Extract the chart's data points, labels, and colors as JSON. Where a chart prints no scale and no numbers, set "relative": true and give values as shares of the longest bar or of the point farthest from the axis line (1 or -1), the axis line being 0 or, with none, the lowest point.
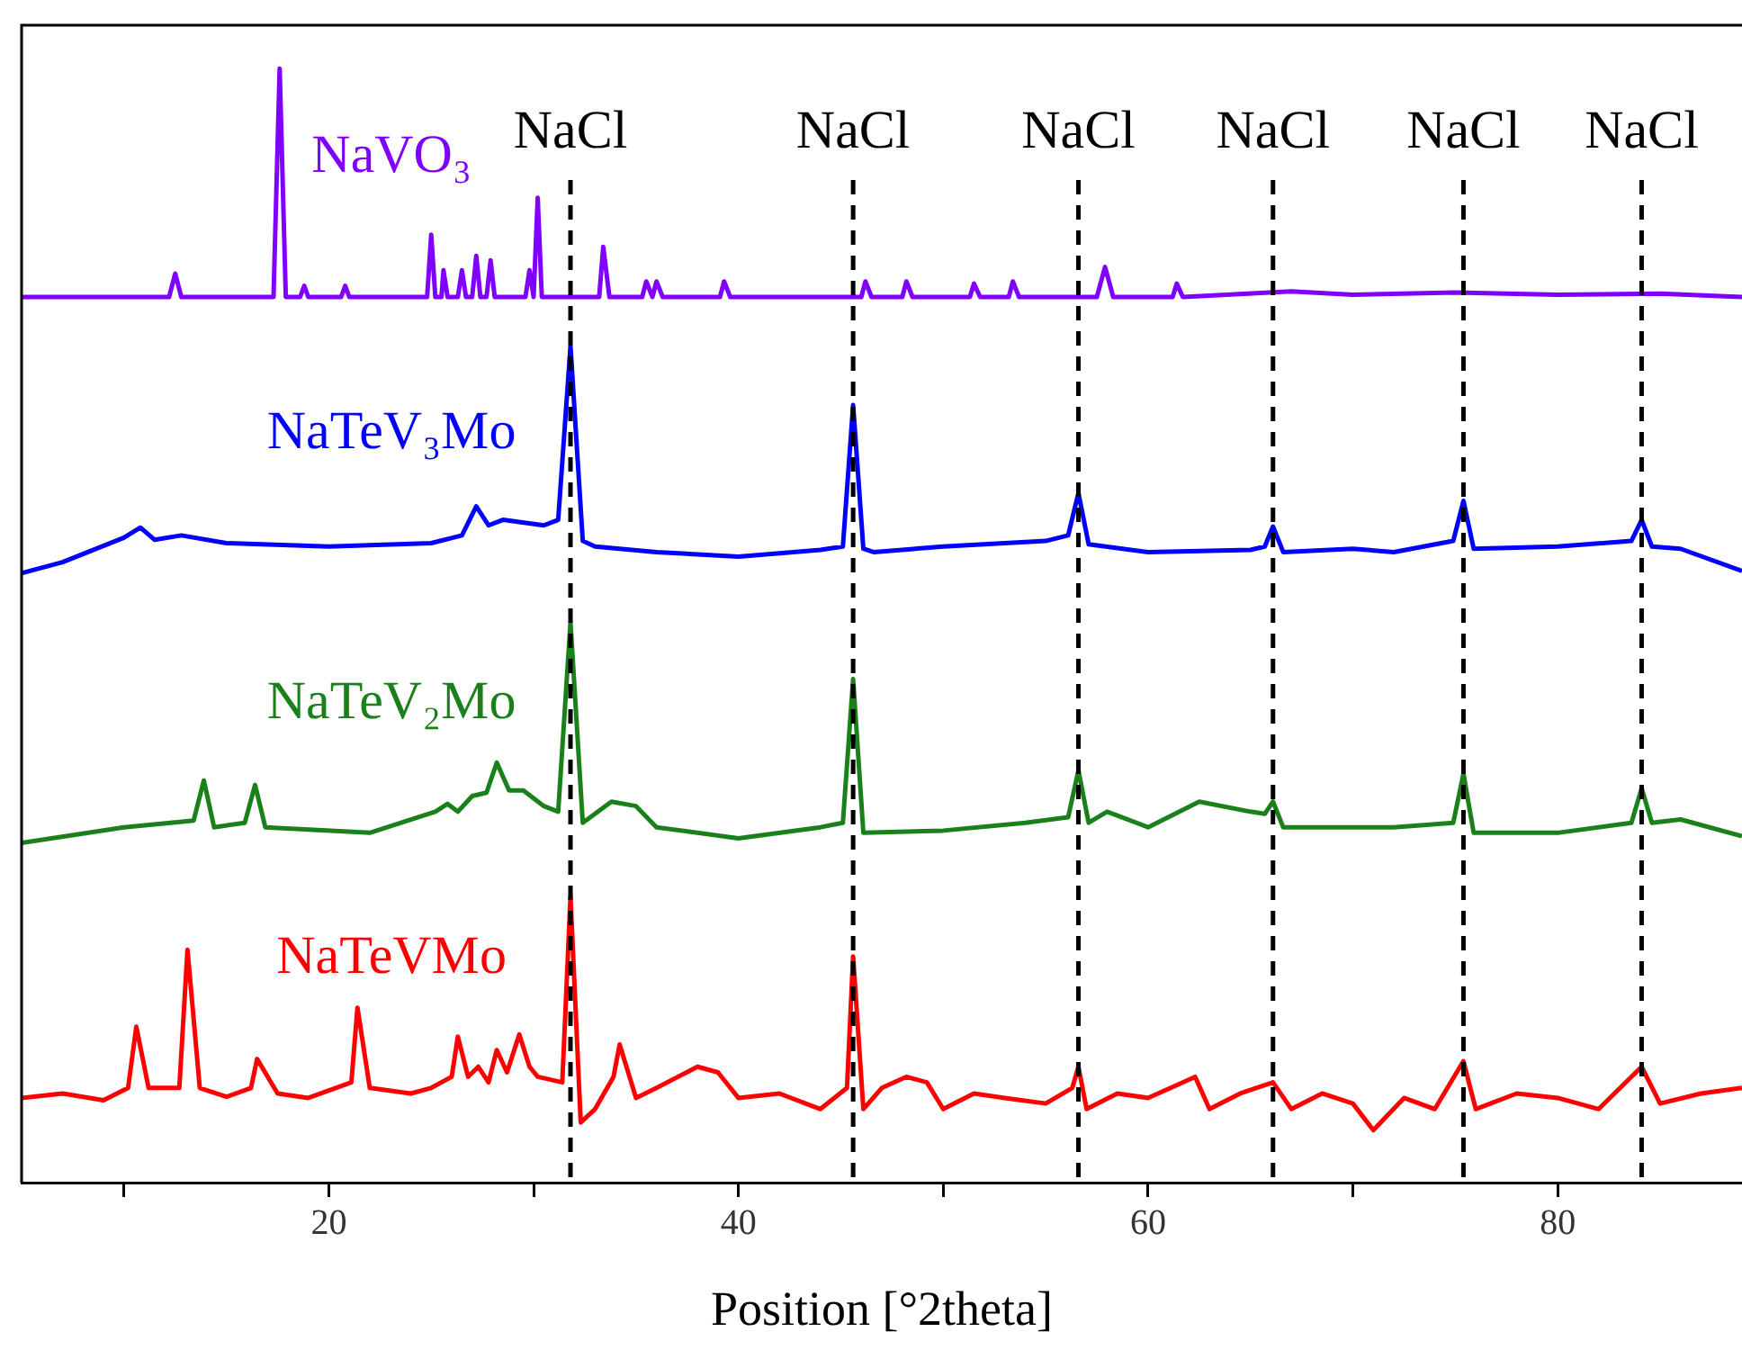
{
  "chart_data": {
    "type": "line",
    "relative": true,
    "xlabel": "Position [°2theta]",
    "xlim": [
      5,
      89
    ],
    "xticks": [
      {
        "value": 10,
        "label": null
      },
      20,
      {
        "value": 30,
        "label": null
      },
      40,
      {
        "value": 50,
        "label": null
      },
      60,
      {
        "value": 70,
        "label": null
      },
      80
    ],
    "grid": false,
    "legend": false,
    "marker": "none",
    "line_style": "solid",
    "ref_lines": [
      {
        "axis": "x",
        "value": 31.8,
        "label": "NaCl",
        "color": "#000000",
        "line_style": "dashed"
      },
      {
        "axis": "x",
        "value": 45.6,
        "label": "NaCl",
        "color": "#000000",
        "line_style": "dashed"
      },
      {
        "axis": "x",
        "value": 56.6,
        "label": "NaCl",
        "color": "#000000",
        "line_style": "dashed"
      },
      {
        "axis": "x",
        "value": 66.1,
        "label": "NaCl",
        "color": "#000000",
        "line_style": "dashed"
      },
      {
        "axis": "x",
        "value": 75.4,
        "label": "NaCl",
        "color": "#000000",
        "line_style": "dashed"
      },
      {
        "axis": "x",
        "value": 84.1,
        "label": "NaCl",
        "color": "#000000",
        "line_style": "dashed"
      }
    ],
    "series": [
      {
        "name": "NaVO₃",
        "color": "#8000ff",
        "x": [
          5,
          12.2,
          12.5,
          12.8,
          17.3,
          17.6,
          17.9,
          18.6,
          18.8,
          19,
          20.6,
          20.8,
          21,
          24.8,
          25,
          25.2,
          25.5,
          25.6,
          25.8,
          26.3,
          26.5,
          26.7,
          27,
          27.2,
          27.4,
          27.7,
          27.9,
          28.1,
          29.6,
          29.8,
          30,
          30.2,
          30.4,
          33.2,
          33.4,
          33.7,
          35.3,
          35.5,
          35.8,
          36,
          36.3,
          39.1,
          39.3,
          39.6,
          46,
          46.2,
          46.5,
          48,
          48.2,
          48.5,
          51.3,
          51.5,
          51.8,
          53.2,
          53.4,
          53.7,
          57.5,
          57.9,
          58.3,
          61.2,
          61.4,
          61.7,
          67,
          70,
          75,
          80,
          85,
          89
        ],
        "values": [
          0.795,
          0.795,
          0.816,
          0.795,
          0.795,
          1.0,
          0.795,
          0.795,
          0.805,
          0.795,
          0.795,
          0.805,
          0.795,
          0.795,
          0.851,
          0.795,
          0.795,
          0.819,
          0.795,
          0.795,
          0.819,
          0.795,
          0.795,
          0.832,
          0.795,
          0.795,
          0.828,
          0.795,
          0.795,
          0.819,
          0.795,
          0.884,
          0.795,
          0.795,
          0.84,
          0.795,
          0.795,
          0.809,
          0.795,
          0.809,
          0.795,
          0.795,
          0.809,
          0.795,
          0.795,
          0.809,
          0.795,
          0.795,
          0.809,
          0.795,
          0.795,
          0.807,
          0.795,
          0.795,
          0.809,
          0.795,
          0.795,
          0.822,
          0.795,
          0.795,
          0.807,
          0.795,
          0.8,
          0.797,
          0.799,
          0.797,
          0.798,
          0.795
        ]
      },
      {
        "name": "NaTeV₃Mo",
        "color": "#0000ff",
        "x": [
          5,
          7,
          10,
          10.8,
          11.5,
          12.8,
          15,
          20,
          25,
          26.5,
          27.2,
          27.8,
          28.5,
          30.5,
          31.2,
          31.8,
          32.4,
          33,
          36,
          40,
          44,
          45.1,
          45.6,
          46.1,
          46.6,
          50,
          55,
          56.1,
          56.6,
          57.1,
          60,
          65,
          65.7,
          66.1,
          66.6,
          70,
          72,
          74.9,
          75.4,
          75.9,
          80,
          83.6,
          84.1,
          84.6,
          86,
          89
        ],
        "values": [
          0.547,
          0.557,
          0.579,
          0.588,
          0.577,
          0.581,
          0.574,
          0.571,
          0.574,
          0.581,
          0.607,
          0.59,
          0.595,
          0.59,
          0.595,
          0.751,
          0.576,
          0.571,
          0.566,
          0.562,
          0.568,
          0.571,
          0.698,
          0.569,
          0.566,
          0.571,
          0.576,
          0.581,
          0.619,
          0.573,
          0.566,
          0.568,
          0.571,
          0.589,
          0.566,
          0.569,
          0.566,
          0.576,
          0.612,
          0.569,
          0.571,
          0.576,
          0.595,
          0.571,
          0.569,
          0.549
        ]
      },
      {
        "name": "NaTeV₂Mo",
        "color": "#1a801a",
        "x": [
          5,
          10,
          13.4,
          13.9,
          14.4,
          15.9,
          16.4,
          16.9,
          22,
          25.2,
          25.8,
          26.3,
          27,
          27.7,
          28.2,
          28.8,
          29.5,
          30.5,
          31.2,
          31.8,
          32.4,
          33.8,
          35,
          36,
          40,
          44,
          45.1,
          45.6,
          46.1,
          50,
          54,
          56.1,
          56.6,
          57.1,
          58,
          60,
          62.5,
          65,
          65.7,
          66.1,
          66.6,
          72,
          74.9,
          75.4,
          75.9,
          80,
          83.6,
          84.1,
          84.6,
          86,
          89
        ],
        "values": [
          0.305,
          0.319,
          0.325,
          0.361,
          0.319,
          0.323,
          0.357,
          0.319,
          0.314,
          0.333,
          0.34,
          0.333,
          0.347,
          0.35,
          0.377,
          0.352,
          0.352,
          0.338,
          0.333,
          0.503,
          0.323,
          0.342,
          0.338,
          0.319,
          0.309,
          0.319,
          0.323,
          0.452,
          0.314,
          0.316,
          0.323,
          0.328,
          0.37,
          0.323,
          0.333,
          0.319,
          0.342,
          0.333,
          0.331,
          0.342,
          0.319,
          0.319,
          0.323,
          0.367,
          0.314,
          0.314,
          0.323,
          0.354,
          0.323,
          0.326,
          0.311
        ]
      },
      {
        "name": "NaTeVMo",
        "color": "#ff0000",
        "x": [
          5,
          7,
          9,
          10.2,
          10.6,
          11.2,
          12.7,
          13.1,
          13.7,
          15,
          16.2,
          16.5,
          17.5,
          19,
          21.1,
          21.4,
          22,
          24,
          25,
          26,
          26.3,
          26.8,
          27.3,
          27.8,
          28.2,
          28.7,
          29.3,
          29.8,
          30.2,
          31.4,
          31.8,
          32.3,
          33,
          33.9,
          34.2,
          35,
          36,
          38,
          39,
          40,
          42,
          44,
          45.3,
          45.6,
          46.1,
          47,
          48.2,
          49.2,
          50,
          51.5,
          53,
          55,
          56.3,
          56.6,
          57,
          58.5,
          60,
          62.3,
          63,
          64.5,
          66.1,
          67,
          68.5,
          70,
          71,
          72.5,
          74,
          75.4,
          76,
          78,
          80,
          82,
          84.1,
          85,
          87,
          89
        ],
        "values": [
          0.076,
          0.08,
          0.074,
          0.085,
          0.14,
          0.085,
          0.085,
          0.209,
          0.085,
          0.077,
          0.085,
          0.111,
          0.08,
          0.076,
          0.09,
          0.157,
          0.085,
          0.08,
          0.085,
          0.095,
          0.131,
          0.095,
          0.104,
          0.09,
          0.119,
          0.099,
          0.133,
          0.104,
          0.095,
          0.09,
          0.257,
          0.054,
          0.066,
          0.095,
          0.124,
          0.076,
          0.085,
          0.104,
          0.099,
          0.076,
          0.08,
          0.066,
          0.085,
          0.203,
          0.066,
          0.085,
          0.095,
          0.09,
          0.066,
          0.08,
          0.076,
          0.071,
          0.085,
          0.104,
          0.066,
          0.08,
          0.076,
          0.095,
          0.066,
          0.08,
          0.09,
          0.066,
          0.08,
          0.071,
          0.047,
          0.076,
          0.066,
          0.109,
          0.066,
          0.08,
          0.076,
          0.066,
          0.104,
          0.071,
          0.08,
          0.085
        ]
      }
    ]
  }
}
